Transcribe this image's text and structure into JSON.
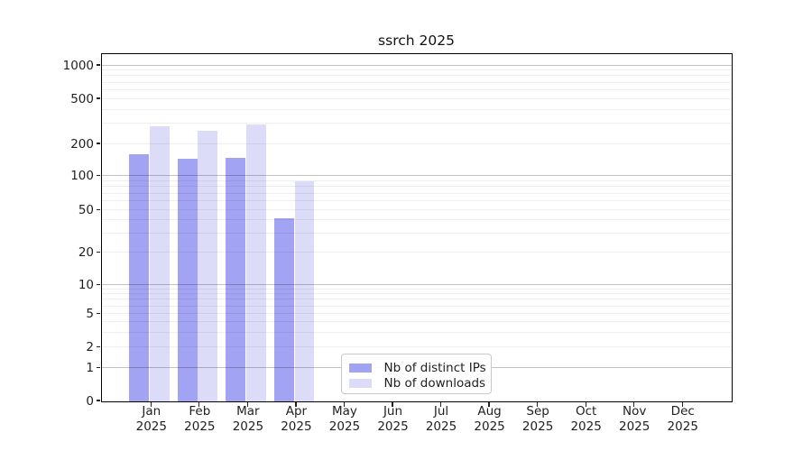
{
  "title": "ssrch 2025",
  "colors": {
    "bar_distinct_ips": "#a3a3f3",
    "bar_downloads": "#dcdcf9",
    "grid_major": "#c2c2c2",
    "grid_minor": "#efefef",
    "spine": "#000000",
    "legend_border": "#c9c9c9"
  },
  "chart_data": {
    "type": "bar",
    "title": "ssrch 2025",
    "categories": [
      "Jan",
      "Feb",
      "Mar",
      "Apr",
      "May",
      "Jun",
      "Jul",
      "Aug",
      "Sep",
      "Oct",
      "Nov",
      "Dec"
    ],
    "category_year": "2025",
    "series": [
      {
        "name": "Nb of distinct IPs",
        "color": "#a3a3f3",
        "values": [
          160,
          145,
          150,
          42,
          0,
          0,
          0,
          0,
          0,
          0,
          0,
          0
        ]
      },
      {
        "name": "Nb of downloads",
        "color": "#dcdcf9",
        "values": [
          290,
          265,
          300,
          90,
          0,
          0,
          0,
          0,
          0,
          0,
          0,
          0
        ]
      }
    ],
    "yscale": "symlog",
    "yticks": [
      0,
      1,
      2,
      5,
      10,
      20,
      50,
      100,
      200,
      500,
      1000
    ],
    "ylim": [
      0,
      1250
    ],
    "xlabel": "",
    "ylabel": "",
    "grid": "both",
    "legend": {
      "position": "lower center"
    }
  }
}
